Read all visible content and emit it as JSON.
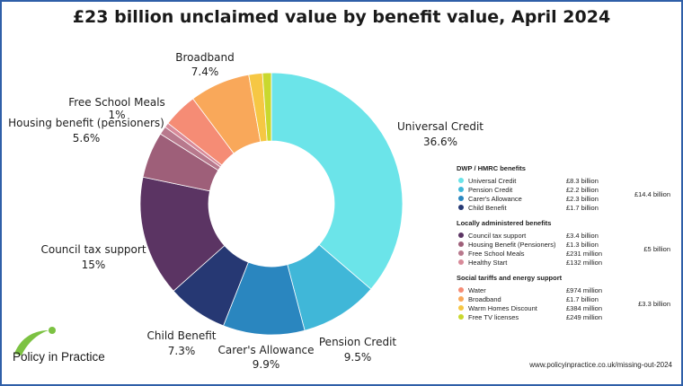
{
  "chart_data": {
    "type": "pie",
    "title": "£23 billion unclaimed value by benefit value, April 2024",
    "slices": [
      {
        "name": "Universal Credit",
        "label_name": "Universal Credit",
        "percent_label": "36.6%",
        "value_bn": 8.3,
        "color": "#6be4e9"
      },
      {
        "name": "Pension Credit",
        "label_name": "Pension Credit",
        "percent_label": "9.5%",
        "value_bn": 2.2,
        "color": "#40b7d8"
      },
      {
        "name": "Carer's Allowance",
        "label_name": "Carer's Allowance",
        "percent_label": "9.9%",
        "value_bn": 2.3,
        "color": "#2a86bf"
      },
      {
        "name": "Child Benefit",
        "label_name": "Child Benefit",
        "percent_label": "7.3%",
        "value_bn": 1.7,
        "color": "#263873"
      },
      {
        "name": "Council tax support",
        "label_name": "Council tax support",
        "percent_label": "15%",
        "value_bn": 3.4,
        "color": "#5b3463"
      },
      {
        "name": "Housing Benefit (Pensioners)",
        "label_name": "Housing benefit (pensioners)",
        "percent_label": "5.6%",
        "value_bn": 1.3,
        "color": "#9e5f79"
      },
      {
        "name": "Free School Meals",
        "label_name": "Free School Meals",
        "percent_label": "1%",
        "value_bn": 0.231,
        "color": "#b8798d"
      },
      {
        "name": "Healthy Start",
        "label_name": "",
        "percent_label": "",
        "value_bn": 0.132,
        "color": "#d88a99"
      },
      {
        "name": "Water",
        "label_name": "",
        "percent_label": "",
        "value_bn": 0.974,
        "color": "#f58c75"
      },
      {
        "name": "Broadband",
        "label_name": "Broadband",
        "percent_label": "7.4%",
        "value_bn": 1.7,
        "color": "#f9a85a"
      },
      {
        "name": "Warm Homes Discount",
        "label_name": "",
        "percent_label": "",
        "value_bn": 0.384,
        "color": "#f6c744"
      },
      {
        "name": "Free TV licenses",
        "label_name": "",
        "percent_label": "",
        "value_bn": 0.249,
        "color": "#c9d82e"
      }
    ],
    "legend": [
      {
        "heading": "DWP / HMRC benefits",
        "total": "£14.4 billion",
        "items": [
          {
            "name": "Universal Credit",
            "amount": "£8.3 billion",
            "color": "#6be4e9"
          },
          {
            "name": "Pension Credit",
            "amount": "£2.2 billion",
            "color": "#40b7d8"
          },
          {
            "name": "Carer's Allowance",
            "amount": "£2.3 billion",
            "color": "#2a86bf"
          },
          {
            "name": "Child Benefit",
            "amount": "£1.7 billion",
            "color": "#263873"
          }
        ]
      },
      {
        "heading": "Locally administered benefits",
        "total": "£5 billion",
        "items": [
          {
            "name": "Council tax support",
            "amount": "£3.4 billion",
            "color": "#5b3463"
          },
          {
            "name": "Housing Benefit (Pensioners)",
            "amount": "£1.3 billion",
            "color": "#9e5f79"
          },
          {
            "name": "Free School Meals",
            "amount": "£231 million",
            "color": "#b8798d"
          },
          {
            "name": "Healthy Start",
            "amount": "£132 million",
            "color": "#d88a99"
          }
        ]
      },
      {
        "heading": "Social tariffs and energy support",
        "total": "£3.3 billion",
        "items": [
          {
            "name": "Water",
            "amount": "£974 million",
            "color": "#f58c75"
          },
          {
            "name": "Broadband",
            "amount": "£1.7 billion",
            "color": "#f9a85a"
          },
          {
            "name": "Warm Homes Discount",
            "amount": "£384 million",
            "color": "#f6c744"
          },
          {
            "name": "Free TV licenses",
            "amount": "£249 million",
            "color": "#c9d82e"
          }
        ]
      }
    ]
  },
  "logo": {
    "text": "Policy in Practice",
    "color": "#7cc242"
  },
  "source": "www.policyinpractice.co.uk/missing-out-2024",
  "colors": {
    "border": "#2f5fa8"
  }
}
